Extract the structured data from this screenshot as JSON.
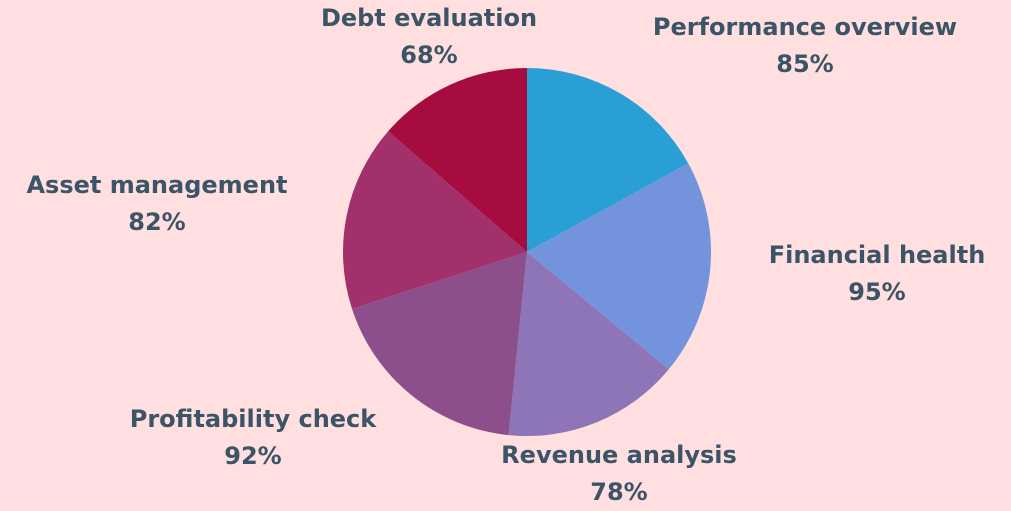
{
  "chart_data": {
    "type": "pie",
    "title": "",
    "start_angle_deg": 0,
    "direction": "clockwise",
    "slices": [
      {
        "label": "Performance overview",
        "value": 85,
        "display": "85%",
        "color": "#2a9fd6"
      },
      {
        "label": "Financial health",
        "value": 95,
        "display": "95%",
        "color": "#7393dd"
      },
      {
        "label": "Revenue analysis",
        "value": 78,
        "display": "78%",
        "color": "#8d75b7"
      },
      {
        "label": "Profitability check",
        "value": 92,
        "display": "92%",
        "color": "#8c4f8c"
      },
      {
        "label": "Asset management",
        "value": 82,
        "display": "82%",
        "color": "#a2306a"
      },
      {
        "label": "Debt evaluation",
        "value": 68,
        "display": "68%",
        "color": "#a60c40"
      }
    ]
  }
}
